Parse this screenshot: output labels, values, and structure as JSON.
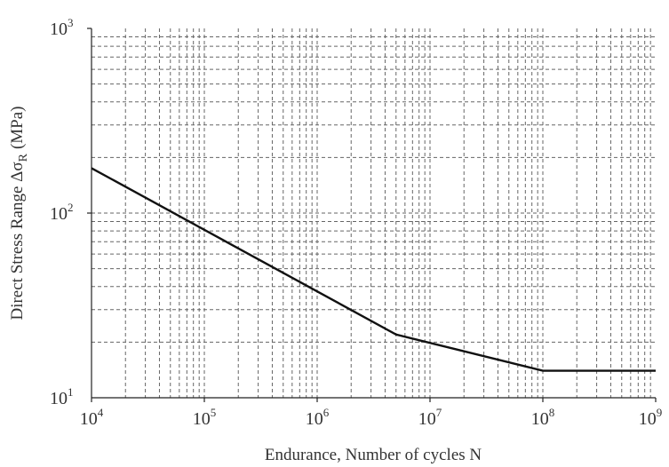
{
  "chart_data": {
    "type": "line",
    "title": "",
    "xlabel": "Endurance, Number of cycles N",
    "ylabel": "Direct Stress Range Δσ",
    "ylabel_subscript": "R",
    "ylabel_unit": "(MPa)",
    "x_scale": "log",
    "y_scale": "log",
    "xlim": [
      10000,
      1000000000
    ],
    "ylim": [
      10,
      1000
    ],
    "grid": true,
    "grid_style": "dashed",
    "x_ticks": [
      {
        "base": "10",
        "exp": "4"
      },
      {
        "base": "10",
        "exp": "5"
      },
      {
        "base": "10",
        "exp": "6"
      },
      {
        "base": "10",
        "exp": "7"
      },
      {
        "base": "10",
        "exp": "8"
      },
      {
        "base": "10",
        "exp": "9"
      }
    ],
    "y_ticks": [
      {
        "base": "10",
        "exp": "1"
      },
      {
        "base": "10",
        "exp": "2"
      },
      {
        "base": "10",
        "exp": "3"
      }
    ],
    "series": [
      {
        "x": [
          10000,
          5000000,
          100000000,
          1000000000
        ],
        "y": [
          175,
          22,
          14,
          14
        ],
        "color": "#111111"
      }
    ]
  }
}
